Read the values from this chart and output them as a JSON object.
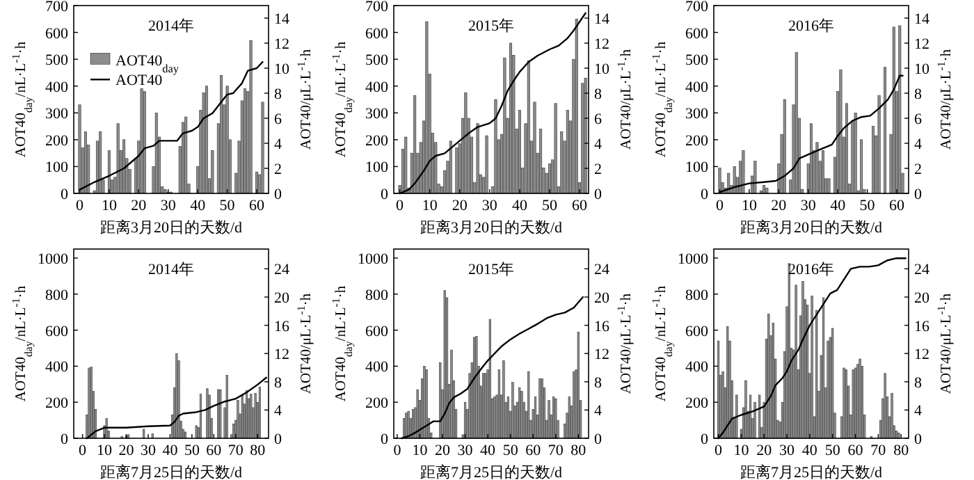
{
  "chart_data": [
    {
      "type": "bar",
      "title": "2014年",
      "xlabel": "距离3月20日的天数/d",
      "ylabel": "AOT40$_{day}$/nL·L$^{-1}$·h",
      "y2label": "AOT40/μL·L$^{-1}$·h",
      "xlim": [
        -2,
        64
      ],
      "xticks": [
        0,
        10,
        20,
        30,
        40,
        50,
        60
      ],
      "ylim": [
        0,
        700
      ],
      "yticks": [
        0,
        100,
        200,
        300,
        400,
        500,
        600,
        700
      ],
      "y2lim": [
        0,
        15
      ],
      "y2ticks": [
        0,
        2,
        4,
        6,
        8,
        10,
        12,
        14
      ],
      "legend": "left",
      "series": [
        {
          "name": "AOT40$_{day}$",
          "color": "#8c8c8c",
          "x": [
            0,
            1,
            2,
            3,
            5,
            6,
            7,
            8,
            10,
            11,
            12,
            13,
            14,
            15,
            16,
            17,
            19,
            20,
            21,
            22,
            25,
            26,
            27,
            28,
            29,
            30,
            31,
            34,
            35,
            36,
            37,
            40,
            41,
            42,
            43,
            44,
            45,
            47,
            48,
            49,
            50,
            51,
            53,
            54,
            55,
            56,
            57,
            58,
            60,
            61,
            62
          ],
          "values": [
            330,
            170,
            230,
            180,
            10,
            195,
            230,
            50,
            160,
            50,
            60,
            260,
            160,
            200,
            130,
            90,
            130,
            195,
            390,
            380,
            100,
            300,
            210,
            25,
            15,
            5,
            5,
            175,
            265,
            285,
            35,
            100,
            310,
            375,
            400,
            55,
            160,
            260,
            440,
            330,
            400,
            200,
            75,
            195,
            345,
            390,
            380,
            570,
            80,
            70,
            340
          ]
        },
        {
          "type": "line",
          "name": "AOT40",
          "color": "#000000",
          "axis": "y2",
          "x": [
            0,
            5,
            10,
            15,
            20,
            22,
            25,
            27,
            33,
            35,
            38,
            40,
            42,
            45,
            48,
            50,
            52,
            55,
            57,
            60,
            62
          ],
          "values": [
            0.3,
            0.9,
            1.4,
            2.0,
            3.0,
            3.6,
            3.8,
            4.2,
            4.2,
            4.8,
            5.0,
            5.3,
            6.0,
            6.4,
            7.3,
            7.9,
            8.0,
            8.8,
            9.8,
            10.0,
            10.5
          ]
        }
      ]
    },
    {
      "type": "bar",
      "title": "2015年",
      "xlabel": "距离3月20日的天数/d",
      "ylabel": "AOT40$_{day}$/nL·L$^{-1}$·h",
      "y2label": "AOT40/μL·L$^{-1}$·h",
      "xlim": [
        -2,
        63
      ],
      "xticks": [
        0,
        10,
        20,
        30,
        40,
        50,
        60
      ],
      "ylim": [
        0,
        700
      ],
      "yticks": [
        0,
        100,
        200,
        300,
        400,
        500,
        600,
        700
      ],
      "y2lim": [
        0,
        15
      ],
      "y2ticks": [
        0,
        2,
        4,
        6,
        8,
        10,
        12,
        14
      ],
      "series": [
        {
          "color": "#8c8c8c",
          "x": [
            0,
            1,
            2,
            3,
            4,
            5,
            6,
            7,
            8,
            9,
            10,
            11,
            12,
            13,
            14,
            15,
            16,
            17,
            19,
            20,
            21,
            22,
            23,
            24,
            25,
            26,
            27,
            28,
            29,
            31,
            32,
            33,
            34,
            35,
            36,
            37,
            38,
            39,
            40,
            41,
            42,
            43,
            44,
            45,
            46,
            47,
            48,
            49,
            50,
            51,
            52,
            53,
            54,
            55,
            56,
            57,
            58,
            59,
            60,
            61,
            62
          ],
          "values": [
            30,
            165,
            210,
            20,
            150,
            365,
            150,
            190,
            270,
            640,
            445,
            225,
            190,
            35,
            25,
            85,
            120,
            195,
            170,
            185,
            280,
            375,
            280,
            210,
            40,
            260,
            70,
            60,
            215,
            25,
            350,
            200,
            220,
            505,
            280,
            560,
            515,
            240,
            310,
            95,
            260,
            495,
            195,
            340,
            150,
            240,
            95,
            75,
            110,
            125,
            335,
            25,
            230,
            195,
            310,
            270,
            500,
            650,
            40,
            410,
            430
          ]
        },
        {
          "type": "line",
          "color": "#000000",
          "axis": "y2",
          "x": [
            0,
            3,
            5,
            8,
            10,
            12,
            15,
            17,
            20,
            23,
            26,
            30,
            32,
            34,
            36,
            38,
            40,
            43,
            46,
            50,
            53,
            56,
            58,
            60,
            62
          ],
          "values": [
            0,
            0.3,
            0.8,
            1.8,
            2.6,
            3.0,
            3.2,
            3.6,
            4.2,
            4.8,
            5.3,
            5.6,
            6.0,
            7.0,
            8.2,
            9.0,
            9.7,
            10.5,
            11.0,
            11.5,
            11.8,
            12.4,
            13.0,
            13.7,
            14.4
          ]
        }
      ]
    },
    {
      "type": "bar",
      "title": "2016年",
      "xlabel": "距离3月20日的天数/d",
      "ylabel": "AOT40$_{day}$/nL·L$^{-1}$·h",
      "y2label": "AOT40/μL·L$^{-1}$·h",
      "xlim": [
        -2,
        64
      ],
      "xticks": [
        0,
        10,
        20,
        30,
        40,
        50,
        60
      ],
      "ylim": [
        0,
        700
      ],
      "yticks": [
        0,
        100,
        200,
        300,
        400,
        500,
        600,
        700
      ],
      "y2lim": [
        0,
        15
      ],
      "y2ticks": [
        0,
        2,
        4,
        6,
        8,
        10,
        12,
        14
      ],
      "series": [
        {
          "color": "#8c8c8c",
          "x": [
            0,
            1,
            2,
            3,
            4,
            5,
            6,
            7,
            8,
            11,
            12,
            14,
            15,
            16,
            20,
            21,
            22,
            24,
            25,
            26,
            27,
            28,
            30,
            31,
            32,
            33,
            34,
            35,
            36,
            37,
            39,
            40,
            41,
            42,
            43,
            44,
            45,
            46,
            47,
            48,
            49,
            52,
            53,
            54,
            56,
            58,
            59,
            60,
            61,
            62
          ],
          "values": [
            95,
            40,
            20,
            75,
            30,
            100,
            60,
            120,
            160,
            65,
            120,
            10,
            30,
            20,
            110,
            220,
            350,
            50,
            330,
            525,
            280,
            15,
            110,
            260,
            160,
            190,
            120,
            160,
            55,
            55,
            135,
            380,
            460,
            210,
            335,
            35,
            270,
            300,
            10,
            200,
            15,
            250,
            215,
            365,
            470,
            220,
            620,
            380,
            625,
            75
          ]
        },
        {
          "type": "line",
          "color": "#000000",
          "axis": "y2",
          "x": [
            0,
            5,
            10,
            15,
            19,
            22,
            25,
            27,
            30,
            35,
            38,
            40,
            42,
            45,
            48,
            51,
            54,
            57,
            59,
            61,
            62
          ],
          "values": [
            0.1,
            0.5,
            0.8,
            0.9,
            1.0,
            1.4,
            2.0,
            2.8,
            3.1,
            3.6,
            3.9,
            4.6,
            5.2,
            5.8,
            6.1,
            6.2,
            6.8,
            7.5,
            8.3,
            9.4,
            9.4
          ]
        }
      ]
    },
    {
      "type": "bar",
      "title": "2014年",
      "xlabel": "距离7月25日的天数/d",
      "ylabel": "AOT40$_{day}$/nL·L$^{-1}$·h",
      "y2label": "AOT40/μL·L$^{-1}$·h",
      "xlim": [
        -4,
        85
      ],
      "xticks": [
        0,
        10,
        20,
        30,
        40,
        50,
        60,
        70,
        80
      ],
      "ylim": [
        0,
        1050
      ],
      "yticks": [
        0,
        200,
        400,
        600,
        800,
        1000
      ],
      "y2lim": [
        0,
        26.8
      ],
      "y2ticks": [
        0,
        4,
        8,
        12,
        16,
        20,
        24
      ],
      "series": [
        {
          "color": "#8c8c8c",
          "x": [
            2,
            3,
            4,
            5,
            6,
            10,
            11,
            12,
            18,
            20,
            21,
            28,
            32,
            41,
            42,
            43,
            44,
            45,
            46,
            47,
            52,
            53,
            54,
            57,
            58,
            59,
            62,
            63,
            65,
            66,
            68,
            69,
            70,
            71,
            72,
            73,
            74,
            75,
            76,
            77,
            78,
            79,
            80,
            81
          ],
          "values": [
            130,
            390,
            395,
            260,
            160,
            70,
            110,
            40,
            10,
            15,
            20,
            50,
            25,
            130,
            280,
            470,
            430,
            95,
            50,
            35,
            70,
            60,
            245,
            275,
            240,
            110,
            270,
            270,
            170,
            350,
            20,
            80,
            100,
            210,
            135,
            240,
            190,
            265,
            220,
            245,
            170,
            250,
            200,
            285
          ]
        },
        {
          "type": "line",
          "color": "#000000",
          "axis": "y2",
          "x": [
            2,
            4,
            6,
            10,
            20,
            30,
            40,
            42,
            44,
            46,
            52,
            56,
            60,
            65,
            70,
            75,
            80,
            84
          ],
          "values": [
            0,
            0.5,
            1.0,
            1.5,
            1.5,
            1.7,
            1.8,
            2.3,
            3.2,
            3.5,
            3.7,
            4.0,
            4.6,
            5.2,
            5.6,
            6.5,
            7.6,
            8.6
          ]
        }
      ]
    },
    {
      "type": "bar",
      "title": "2015年",
      "xlabel": "距离7月25日的天数/d",
      "ylabel": "AOT40$_{day}$/nL·L$^{-1}$·h",
      "y2label": "AOT40/μL·L$^{-1}$·h",
      "xlim": [
        -1.5,
        84.5
      ],
      "xticks": [
        0,
        10,
        20,
        30,
        40,
        50,
        60,
        70,
        80
      ],
      "ylim": [
        0,
        1050
      ],
      "yticks": [
        0,
        200,
        400,
        600,
        800,
        1000
      ],
      "y2lim": [
        0,
        26.8
      ],
      "y2ticks": [
        0,
        4,
        8,
        12,
        16,
        20,
        24
      ],
      "series": [
        {
          "color": "#8c8c8c",
          "x": [
            3,
            4,
            5,
            6,
            7,
            8,
            9,
            10,
            11,
            12,
            13,
            14,
            15,
            19,
            20,
            21,
            22,
            23,
            24,
            25,
            26,
            29,
            30,
            31,
            32,
            33,
            34,
            35,
            36,
            37,
            38,
            39,
            40,
            41,
            42,
            43,
            44,
            45,
            46,
            47,
            48,
            49,
            50,
            51,
            52,
            53,
            54,
            55,
            56,
            57,
            58,
            59,
            60,
            61,
            62,
            63,
            64,
            65,
            66,
            67,
            68,
            69,
            70,
            71,
            74,
            75,
            76,
            77,
            78,
            79,
            80,
            81
          ],
          "values": [
            110,
            140,
            150,
            110,
            160,
            170,
            270,
            210,
            330,
            400,
            380,
            110,
            30,
            420,
            270,
            820,
            780,
            300,
            490,
            320,
            160,
            20,
            200,
            160,
            360,
            420,
            560,
            565,
            400,
            290,
            360,
            360,
            380,
            660,
            220,
            230,
            240,
            380,
            240,
            430,
            200,
            230,
            150,
            310,
            180,
            200,
            280,
            260,
            200,
            150,
            370,
            100,
            160,
            230,
            130,
            330,
            330,
            280,
            100,
            210,
            130,
            230,
            220,
            100,
            80,
            140,
            230,
            180,
            370,
            380,
            590,
            210
          ]
        },
        {
          "type": "line",
          "color": "#000000",
          "axis": "y2",
          "x": [
            2,
            5,
            8,
            11,
            14,
            16,
            19,
            21,
            23,
            25,
            28,
            31,
            34,
            37,
            40,
            43,
            46,
            50,
            54,
            58,
            62,
            66,
            70,
            74,
            78,
            82
          ],
          "values": [
            0,
            0.3,
            0.8,
            1.4,
            2.0,
            2.4,
            2.4,
            3.5,
            5.0,
            5.8,
            6.3,
            7.0,
            8.5,
            9.8,
            11.0,
            12.0,
            13.0,
            14.0,
            14.8,
            15.5,
            16.2,
            17.0,
            17.5,
            17.8,
            18.5,
            20.0
          ]
        }
      ]
    },
    {
      "type": "bar",
      "title": "2016年",
      "xlabel": "距离7月25日的天数/d",
      "ylabel": "AOT40$_{day}$/nL·L$^{-1}$·h",
      "y2label": "AOT40/μL·L$^{-1}$·h",
      "xlim": [
        -2,
        83.3
      ],
      "xticks": [
        0,
        10,
        20,
        30,
        40,
        50,
        60,
        70,
        80
      ],
      "ylim": [
        0,
        1050
      ],
      "yticks": [
        0,
        200,
        400,
        600,
        800,
        1000
      ],
      "y2lim": [
        0,
        26.8
      ],
      "y2ticks": [
        0,
        4,
        8,
        12,
        16,
        20,
        24
      ],
      "series": [
        {
          "color": "#8c8c8c",
          "x": [
            0,
            1,
            2,
            3,
            4,
            5,
            6,
            7,
            8,
            10,
            11,
            12,
            13,
            14,
            15,
            16,
            18,
            19,
            20,
            21,
            22,
            23,
            24,
            25,
            26,
            27,
            28,
            29,
            30,
            31,
            32,
            33,
            34,
            35,
            36,
            37,
            38,
            39,
            40,
            41,
            42,
            43,
            44,
            45,
            46,
            47,
            48,
            49,
            50,
            51,
            54,
            55,
            56,
            57,
            58,
            59,
            60,
            61,
            62,
            63,
            64,
            67,
            71,
            72,
            73,
            74,
            75,
            76,
            77,
            78,
            79
          ],
          "values": [
            540,
            350,
            370,
            280,
            620,
            540,
            320,
            110,
            240,
            50,
            170,
            320,
            150,
            240,
            110,
            200,
            240,
            60,
            200,
            550,
            690,
            570,
            640,
            440,
            100,
            90,
            200,
            480,
            730,
            970,
            500,
            490,
            850,
            380,
            680,
            870,
            770,
            740,
            360,
            790,
            120,
            710,
            260,
            460,
            780,
            280,
            540,
            560,
            610,
            140,
            120,
            390,
            380,
            290,
            130,
            380,
            390,
            410,
            440,
            400,
            130,
            10,
            100,
            220,
            360,
            230,
            120,
            250,
            70,
            40,
            30
          ]
        },
        {
          "type": "line",
          "color": "#000000",
          "axis": "y2",
          "x": [
            0,
            2,
            4,
            6,
            10,
            15,
            20,
            23,
            25,
            28,
            30,
            32,
            35,
            37,
            40,
            43,
            46,
            49,
            52,
            55,
            58,
            62,
            66,
            70,
            74,
            78,
            82
          ],
          "values": [
            0,
            0.8,
            1.8,
            2.8,
            3.3,
            3.8,
            4.5,
            6.0,
            7.5,
            8.5,
            9.5,
            11.0,
            12.5,
            14.0,
            16.0,
            17.5,
            19.0,
            20.5,
            21.0,
            22.5,
            24.0,
            24.3,
            24.3,
            24.5,
            25.2,
            25.5,
            25.5
          ]
        }
      ]
    }
  ]
}
